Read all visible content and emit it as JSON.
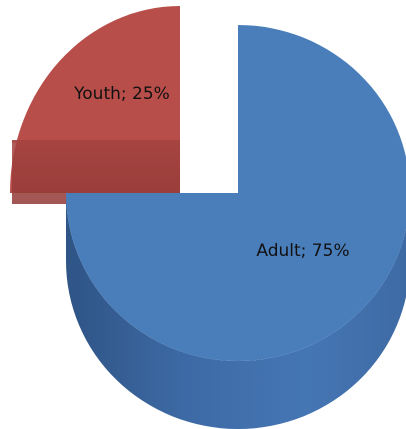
{
  "chart_data": {
    "type": "pie",
    "style": "3d-exploded",
    "slices": [
      {
        "name": "Adult",
        "value": 75,
        "label": "Adult; 75%",
        "color": "#4a7ebb"
      },
      {
        "name": "Youth",
        "value": 25,
        "label": "Youth; 25%",
        "color": "#b84e4a"
      }
    ],
    "start_angle": "12 o'clock",
    "direction": "clockwise",
    "legend": "none"
  }
}
